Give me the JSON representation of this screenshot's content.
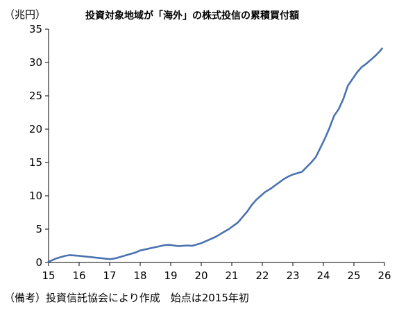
{
  "chart_data": {
    "type": "line",
    "title": "投資対象地域が「海外」の株式投信の累積買付額",
    "unit_label": "（兆円）",
    "footnote": "（備考）投資信託協会により作成　始点は2015年初",
    "xlabel": "",
    "ylabel": "",
    "xlim": [
      15,
      26
    ],
    "ylim": [
      0,
      35
    ],
    "x_ticks": [
      15,
      16,
      17,
      18,
      19,
      20,
      21,
      22,
      23,
      24,
      25,
      26
    ],
    "y_ticks": [
      0,
      5,
      10,
      15,
      20,
      25,
      30,
      35
    ],
    "grid": false,
    "series": [
      {
        "color": "#4a72b0",
        "x": [
          15.0,
          15.1,
          15.25,
          15.4,
          15.55,
          15.7,
          15.85,
          16.0,
          16.2,
          16.4,
          16.6,
          16.8,
          17.0,
          17.1,
          17.25,
          17.4,
          17.55,
          17.7,
          17.85,
          18.0,
          18.2,
          18.4,
          18.6,
          18.8,
          18.95,
          19.1,
          19.25,
          19.4,
          19.55,
          19.7,
          19.85,
          20.0,
          20.15,
          20.3,
          20.45,
          20.6,
          20.75,
          20.9,
          21.05,
          21.2,
          21.35,
          21.5,
          21.65,
          21.8,
          21.95,
          22.1,
          22.25,
          22.4,
          22.55,
          22.7,
          22.85,
          23.0,
          23.15,
          23.3,
          23.45,
          23.6,
          23.75,
          23.9,
          24.05,
          24.2,
          24.35,
          24.5,
          24.65,
          24.8,
          24.95,
          25.1,
          25.25,
          25.4,
          25.55,
          25.7,
          25.85,
          25.92
        ],
        "values": [
          0.1,
          0.3,
          0.6,
          0.8,
          1.0,
          1.1,
          1.05,
          1.0,
          0.9,
          0.8,
          0.7,
          0.6,
          0.5,
          0.55,
          0.7,
          0.9,
          1.1,
          1.3,
          1.5,
          1.8,
          2.0,
          2.2,
          2.4,
          2.6,
          2.65,
          2.55,
          2.45,
          2.5,
          2.55,
          2.5,
          2.7,
          2.9,
          3.2,
          3.5,
          3.8,
          4.2,
          4.6,
          5.0,
          5.5,
          6.0,
          6.8,
          7.6,
          8.6,
          9.4,
          10.0,
          10.6,
          11.0,
          11.5,
          12.0,
          12.5,
          12.9,
          13.2,
          13.4,
          13.6,
          14.3,
          15.0,
          15.8,
          17.2,
          18.6,
          20.2,
          22.0,
          23.0,
          24.5,
          26.5,
          27.5,
          28.5,
          29.3,
          29.8,
          30.4,
          31.0,
          31.7,
          32.1
        ]
      }
    ]
  }
}
